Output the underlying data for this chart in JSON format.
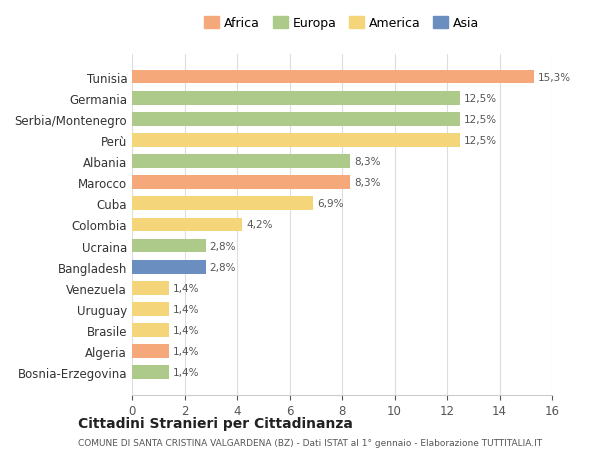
{
  "countries": [
    "Tunisia",
    "Germania",
    "Serbia/Montenegro",
    "Perù",
    "Albania",
    "Marocco",
    "Cuba",
    "Colombia",
    "Ucraina",
    "Bangladesh",
    "Venezuela",
    "Uruguay",
    "Brasile",
    "Algeria",
    "Bosnia-Erzegovina"
  ],
  "values": [
    15.3,
    12.5,
    12.5,
    12.5,
    8.3,
    8.3,
    6.9,
    4.2,
    2.8,
    2.8,
    1.4,
    1.4,
    1.4,
    1.4,
    1.4
  ],
  "labels": [
    "15,3%",
    "12,5%",
    "12,5%",
    "12,5%",
    "8,3%",
    "8,3%",
    "6,9%",
    "4,2%",
    "2,8%",
    "2,8%",
    "1,4%",
    "1,4%",
    "1,4%",
    "1,4%",
    "1,4%"
  ],
  "continents": [
    "Africa",
    "Europa",
    "Europa",
    "America",
    "Europa",
    "Africa",
    "America",
    "America",
    "Europa",
    "Asia",
    "America",
    "America",
    "America",
    "Africa",
    "Europa"
  ],
  "colors": {
    "Africa": "#F5A97A",
    "Europa": "#AECA8A",
    "America": "#F5D57A",
    "Asia": "#6A8EC0"
  },
  "legend_order": [
    "Africa",
    "Europa",
    "America",
    "Asia"
  ],
  "title": "Cittadini Stranieri per Cittadinanza",
  "subtitle": "COMUNE DI SANTA CRISTINA VALGARDENA (BZ) - Dati ISTAT al 1° gennaio - Elaborazione TUTTITALIA.IT",
  "xlim": [
    0,
    16
  ],
  "xticks": [
    0,
    2,
    4,
    6,
    8,
    10,
    12,
    14,
    16
  ],
  "background_color": "#ffffff",
  "bar_height": 0.65
}
